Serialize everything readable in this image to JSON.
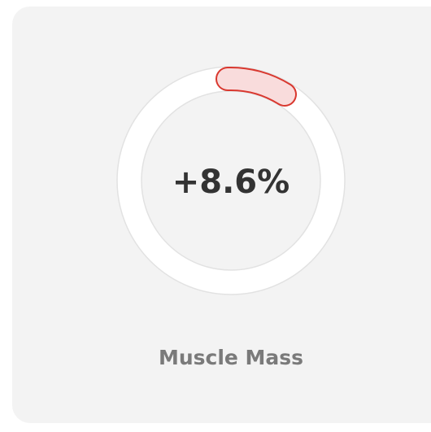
{
  "card": {
    "value": "+8.6%",
    "label": "Muscle Mass"
  }
}
